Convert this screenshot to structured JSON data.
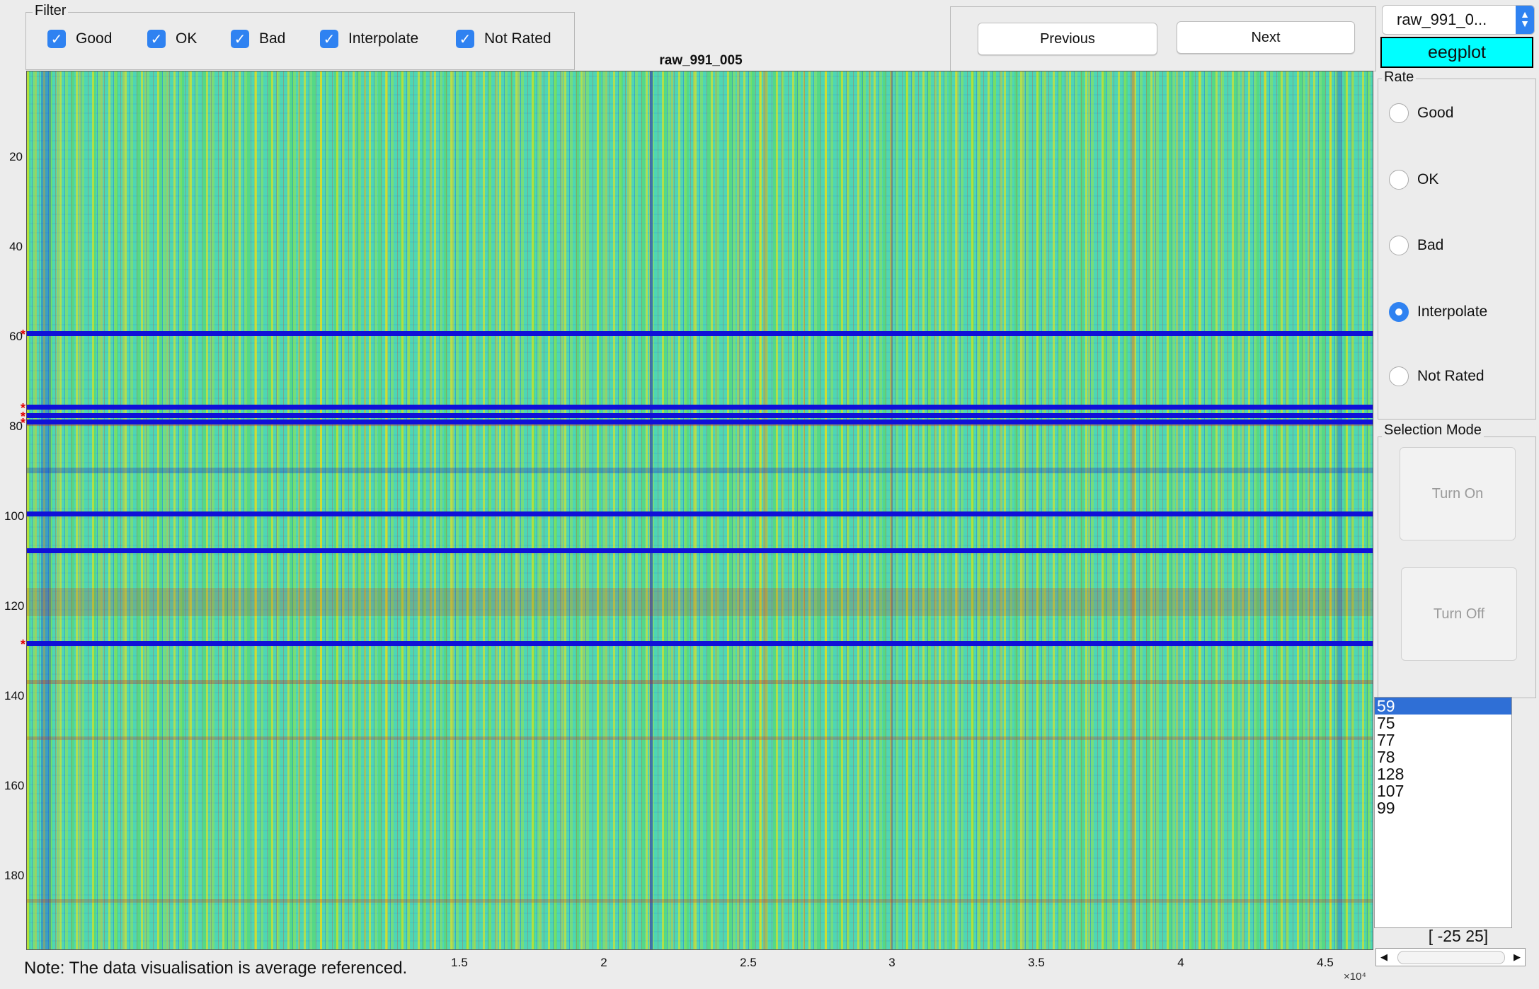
{
  "filter": {
    "title": "Filter",
    "options": [
      {
        "label": "Good",
        "checked": true
      },
      {
        "label": "OK",
        "checked": true
      },
      {
        "label": "Bad",
        "checked": true
      },
      {
        "label": "Interpolate",
        "checked": true
      },
      {
        "label": "Not Rated",
        "checked": true
      }
    ]
  },
  "nav": {
    "previous_label": "Previous",
    "next_label": "Next"
  },
  "file_select": {
    "value": "raw_991_0..."
  },
  "eegplot_label": "eegplot",
  "plot": {
    "title": "raw_991_005",
    "y_ticks": [
      "20",
      "40",
      "60",
      "80",
      "100",
      "120",
      "140",
      "160",
      "180"
    ],
    "x_ticks": [
      "1.5",
      "2",
      "2.5",
      "3",
      "3.5",
      "4",
      "4.5"
    ],
    "x_exponent": "×10⁴",
    "highlighted_channels": [
      59,
      75,
      77,
      78,
      99,
      107,
      128
    ],
    "note": "Note: The data visualisation is average referenced."
  },
  "rate": {
    "title": "Rate",
    "options": [
      {
        "label": "Good",
        "selected": false
      },
      {
        "label": "OK",
        "selected": false
      },
      {
        "label": "Bad",
        "selected": false
      },
      {
        "label": "Interpolate",
        "selected": true
      },
      {
        "label": "Not Rated",
        "selected": false
      }
    ]
  },
  "selection_mode": {
    "title": "Selection Mode",
    "turn_on_label": "Turn On",
    "turn_off_label": "Turn Off"
  },
  "channel_list": [
    "59",
    "75",
    "77",
    "78",
    "128",
    "107",
    "99"
  ],
  "range_label": "[ -25 25]"
}
